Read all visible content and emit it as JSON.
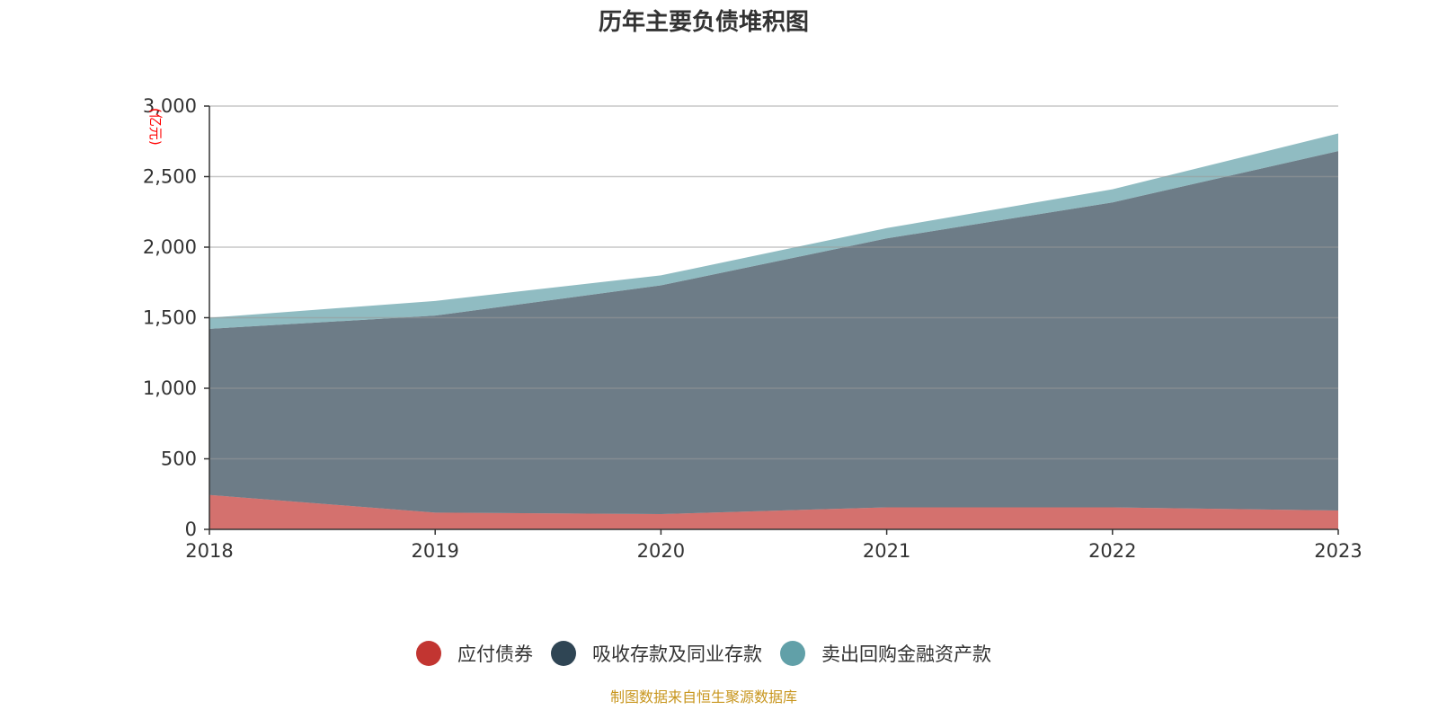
{
  "chart_data": {
    "type": "area",
    "stacked": true,
    "title": "历年主要负债堆积图",
    "ylabel": "(亿元)",
    "xlabel": "",
    "categories": [
      "2018",
      "2019",
      "2020",
      "2021",
      "2022",
      "2023"
    ],
    "ylim": [
      0,
      3000
    ],
    "yticks": [
      0,
      500,
      1000,
      1500,
      2000,
      2500,
      3000
    ],
    "ytick_labels": [
      "0",
      "500",
      "1,000",
      "1,500",
      "2,000",
      "2,500",
      "3,000"
    ],
    "grid": true,
    "legend_position": "bottom",
    "series": [
      {
        "name": "应付债券",
        "color": "#c23531",
        "values": [
          244,
          119,
          108,
          156,
          156,
          134
        ]
      },
      {
        "name": "吸收存款及同业存款",
        "color": "#2f4554",
        "values": [
          1177,
          1396,
          1621,
          1906,
          2161,
          2547
        ]
      },
      {
        "name": "卖出回购金融资产款",
        "color": "#61a0a8",
        "values": [
          79,
          104,
          71,
          73,
          93,
          125
        ]
      }
    ]
  },
  "footer": "制图数据来自恒生聚源数据库",
  "ylabel_color": "#ff0000"
}
